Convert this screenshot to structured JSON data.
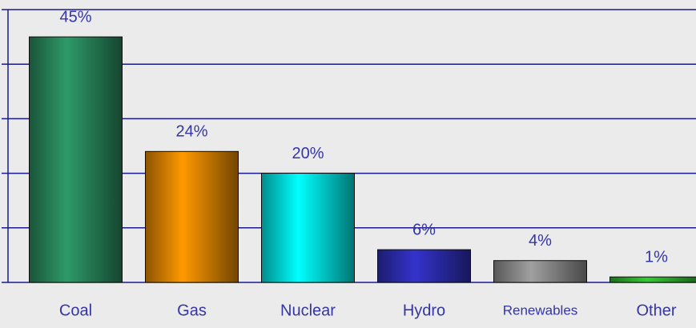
{
  "chart_data": {
    "type": "bar",
    "categories": [
      "Coal",
      "Gas",
      "Nuclear",
      "Hydro",
      "Renewables",
      "Other"
    ],
    "values": [
      45,
      24,
      20,
      6,
      4,
      1
    ],
    "value_labels": [
      "45%",
      "24%",
      "20%",
      "6%",
      "4%",
      "1%"
    ],
    "colors": [
      "#2e9a68",
      "#ff9900",
      "#00ffff",
      "#3333cc",
      "#a0a0a0",
      "#33cc33"
    ],
    "ylim": [
      0,
      50
    ],
    "yticks": [
      0,
      10,
      20,
      30,
      40,
      50
    ],
    "grid": true
  }
}
